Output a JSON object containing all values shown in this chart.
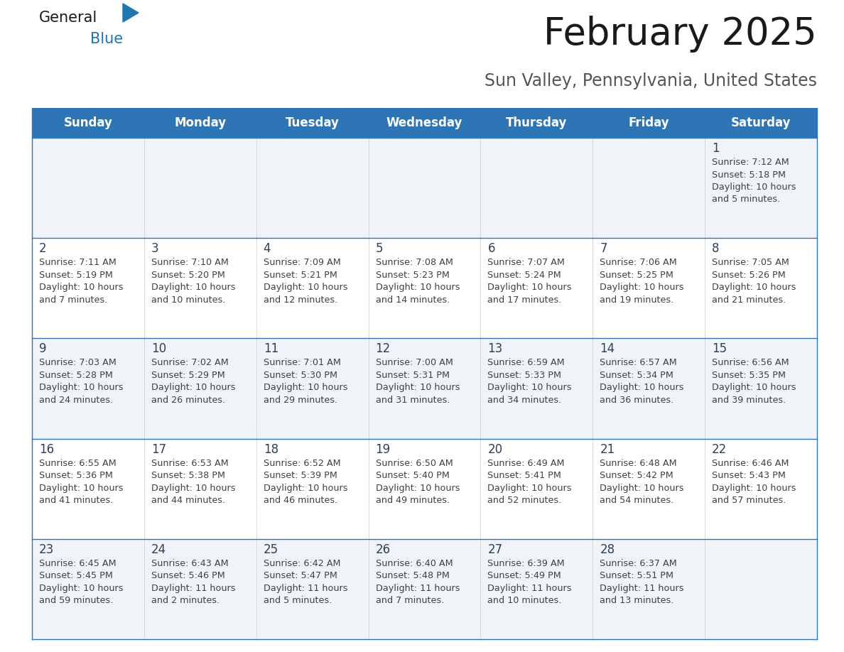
{
  "title": "February 2025",
  "subtitle": "Sun Valley, Pennsylvania, United States",
  "header_bg_color": "#2E75B6",
  "header_text_color": "#FFFFFF",
  "row_bg_color_light": "#F0F4F8",
  "row_bg_color_white": "#FFFFFF",
  "day_number_color": "#2E4057",
  "cell_text_color": "#404040",
  "border_color": "#2E75B6",
  "days_of_week": [
    "Sunday",
    "Monday",
    "Tuesday",
    "Wednesday",
    "Thursday",
    "Friday",
    "Saturday"
  ],
  "calendar_data": [
    [
      {
        "day": "",
        "info": ""
      },
      {
        "day": "",
        "info": ""
      },
      {
        "day": "",
        "info": ""
      },
      {
        "day": "",
        "info": ""
      },
      {
        "day": "",
        "info": ""
      },
      {
        "day": "",
        "info": ""
      },
      {
        "day": "1",
        "info": "Sunrise: 7:12 AM\nSunset: 5:18 PM\nDaylight: 10 hours\nand 5 minutes."
      }
    ],
    [
      {
        "day": "2",
        "info": "Sunrise: 7:11 AM\nSunset: 5:19 PM\nDaylight: 10 hours\nand 7 minutes."
      },
      {
        "day": "3",
        "info": "Sunrise: 7:10 AM\nSunset: 5:20 PM\nDaylight: 10 hours\nand 10 minutes."
      },
      {
        "day": "4",
        "info": "Sunrise: 7:09 AM\nSunset: 5:21 PM\nDaylight: 10 hours\nand 12 minutes."
      },
      {
        "day": "5",
        "info": "Sunrise: 7:08 AM\nSunset: 5:23 PM\nDaylight: 10 hours\nand 14 minutes."
      },
      {
        "day": "6",
        "info": "Sunrise: 7:07 AM\nSunset: 5:24 PM\nDaylight: 10 hours\nand 17 minutes."
      },
      {
        "day": "7",
        "info": "Sunrise: 7:06 AM\nSunset: 5:25 PM\nDaylight: 10 hours\nand 19 minutes."
      },
      {
        "day": "8",
        "info": "Sunrise: 7:05 AM\nSunset: 5:26 PM\nDaylight: 10 hours\nand 21 minutes."
      }
    ],
    [
      {
        "day": "9",
        "info": "Sunrise: 7:03 AM\nSunset: 5:28 PM\nDaylight: 10 hours\nand 24 minutes."
      },
      {
        "day": "10",
        "info": "Sunrise: 7:02 AM\nSunset: 5:29 PM\nDaylight: 10 hours\nand 26 minutes."
      },
      {
        "day": "11",
        "info": "Sunrise: 7:01 AM\nSunset: 5:30 PM\nDaylight: 10 hours\nand 29 minutes."
      },
      {
        "day": "12",
        "info": "Sunrise: 7:00 AM\nSunset: 5:31 PM\nDaylight: 10 hours\nand 31 minutes."
      },
      {
        "day": "13",
        "info": "Sunrise: 6:59 AM\nSunset: 5:33 PM\nDaylight: 10 hours\nand 34 minutes."
      },
      {
        "day": "14",
        "info": "Sunrise: 6:57 AM\nSunset: 5:34 PM\nDaylight: 10 hours\nand 36 minutes."
      },
      {
        "day": "15",
        "info": "Sunrise: 6:56 AM\nSunset: 5:35 PM\nDaylight: 10 hours\nand 39 minutes."
      }
    ],
    [
      {
        "day": "16",
        "info": "Sunrise: 6:55 AM\nSunset: 5:36 PM\nDaylight: 10 hours\nand 41 minutes."
      },
      {
        "day": "17",
        "info": "Sunrise: 6:53 AM\nSunset: 5:38 PM\nDaylight: 10 hours\nand 44 minutes."
      },
      {
        "day": "18",
        "info": "Sunrise: 6:52 AM\nSunset: 5:39 PM\nDaylight: 10 hours\nand 46 minutes."
      },
      {
        "day": "19",
        "info": "Sunrise: 6:50 AM\nSunset: 5:40 PM\nDaylight: 10 hours\nand 49 minutes."
      },
      {
        "day": "20",
        "info": "Sunrise: 6:49 AM\nSunset: 5:41 PM\nDaylight: 10 hours\nand 52 minutes."
      },
      {
        "day": "21",
        "info": "Sunrise: 6:48 AM\nSunset: 5:42 PM\nDaylight: 10 hours\nand 54 minutes."
      },
      {
        "day": "22",
        "info": "Sunrise: 6:46 AM\nSunset: 5:43 PM\nDaylight: 10 hours\nand 57 minutes."
      }
    ],
    [
      {
        "day": "23",
        "info": "Sunrise: 6:45 AM\nSunset: 5:45 PM\nDaylight: 10 hours\nand 59 minutes."
      },
      {
        "day": "24",
        "info": "Sunrise: 6:43 AM\nSunset: 5:46 PM\nDaylight: 11 hours\nand 2 minutes."
      },
      {
        "day": "25",
        "info": "Sunrise: 6:42 AM\nSunset: 5:47 PM\nDaylight: 11 hours\nand 5 minutes."
      },
      {
        "day": "26",
        "info": "Sunrise: 6:40 AM\nSunset: 5:48 PM\nDaylight: 11 hours\nand 7 minutes."
      },
      {
        "day": "27",
        "info": "Sunrise: 6:39 AM\nSunset: 5:49 PM\nDaylight: 11 hours\nand 10 minutes."
      },
      {
        "day": "28",
        "info": "Sunrise: 6:37 AM\nSunset: 5:51 PM\nDaylight: 11 hours\nand 13 minutes."
      },
      {
        "day": "",
        "info": ""
      }
    ]
  ],
  "logo_color_general": "#1a1a1a",
  "logo_color_blue": "#2176AE",
  "title_fontsize": 38,
  "subtitle_fontsize": 17,
  "header_fontsize": 12,
  "day_num_fontsize": 12,
  "cell_info_fontsize": 9.2
}
